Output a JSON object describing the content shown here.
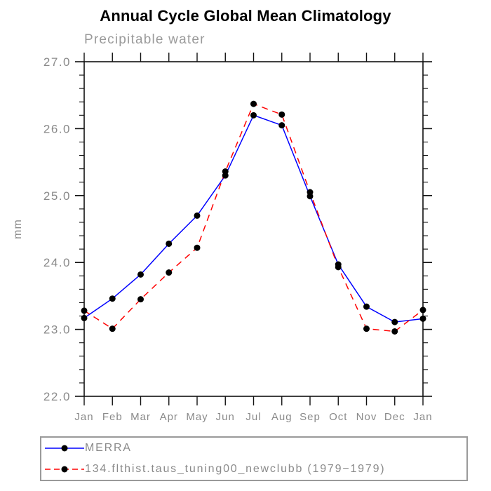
{
  "chart_data": {
    "type": "line",
    "title": "Annual Cycle Global Mean Climatology",
    "subtitle": "Precipitable water",
    "xlabel": "",
    "ylabel": "mm",
    "categories": [
      "Jan",
      "Feb",
      "Mar",
      "Apr",
      "May",
      "Jun",
      "Jul",
      "Aug",
      "Sep",
      "Oct",
      "Nov",
      "Dec",
      "Jan"
    ],
    "ylim": [
      22.0,
      27.0
    ],
    "ytick_major_step": 1.0,
    "ytick_minor_step": 0.2,
    "ytick_labels": [
      "22.0",
      "23.0",
      "24.0",
      "25.0",
      "26.0",
      "27.0"
    ],
    "grid": false,
    "legend_position": "bottom-left",
    "series": [
      {
        "name": "MERRA",
        "color": "#0000ff",
        "line_style": "solid",
        "marker": "circle",
        "marker_color": "#000000",
        "values": [
          23.17,
          23.46,
          23.82,
          24.28,
          24.7,
          25.3,
          26.2,
          26.05,
          24.99,
          23.97,
          23.34,
          23.11,
          23.16
        ]
      },
      {
        "name": "134.flthist.taus_tuning00_newclubb (1979−1979)",
        "color": "#ff0000",
        "line_style": "dashed",
        "marker": "circle",
        "marker_color": "#000000",
        "values": [
          23.28,
          23.01,
          23.45,
          23.85,
          24.22,
          25.36,
          26.37,
          26.21,
          25.05,
          23.93,
          23.01,
          22.97,
          23.29
        ]
      }
    ],
    "axis_color": "#111111",
    "tick_label_color": "#8a8a8a"
  }
}
